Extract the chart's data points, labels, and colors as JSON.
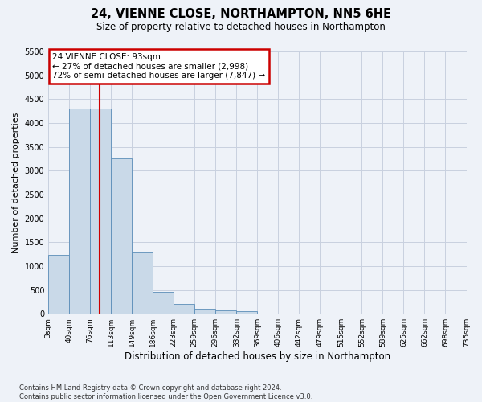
{
  "title_line1": "24, VIENNE CLOSE, NORTHAMPTON, NN5 6HE",
  "title_line2": "Size of property relative to detached houses in Northampton",
  "xlabel": "Distribution of detached houses by size in Northampton",
  "ylabel": "Number of detached properties",
  "footnote": "Contains HM Land Registry data © Crown copyright and database right 2024.\nContains public sector information licensed under the Open Government Licence v3.0.",
  "bin_labels": [
    "3sqm",
    "40sqm",
    "76sqm",
    "113sqm",
    "149sqm",
    "186sqm",
    "223sqm",
    "259sqm",
    "296sqm",
    "332sqm",
    "369sqm",
    "406sqm",
    "442sqm",
    "479sqm",
    "515sqm",
    "552sqm",
    "589sqm",
    "625sqm",
    "662sqm",
    "698sqm",
    "735sqm"
  ],
  "bar_values": [
    1230,
    4300,
    4300,
    3250,
    1290,
    460,
    200,
    100,
    65,
    55,
    0,
    0,
    0,
    0,
    0,
    0,
    0,
    0,
    0,
    0
  ],
  "bar_color": "#c9d9e8",
  "bar_edgecolor": "#5b8db8",
  "redline_color": "#cc0000",
  "redline_x": 2.46,
  "annotation_text": "24 VIENNE CLOSE: 93sqm\n← 27% of detached houses are smaller (2,998)\n72% of semi-detached houses are larger (7,847) →",
  "annotation_box_facecolor": "#ffffff",
  "annotation_box_edgecolor": "#cc0000",
  "ylim": [
    0,
    5500
  ],
  "yticks": [
    0,
    500,
    1000,
    1500,
    2000,
    2500,
    3000,
    3500,
    4000,
    4500,
    5000,
    5500
  ],
  "grid_color": "#c8d0df",
  "bg_color": "#eef2f8",
  "title1_fontsize": 10.5,
  "title2_fontsize": 8.5,
  "ylabel_fontsize": 8,
  "xlabel_fontsize": 8.5,
  "tick_fontsize": 6.5,
  "annotation_fontsize": 7.5,
  "footnote_fontsize": 6.0
}
